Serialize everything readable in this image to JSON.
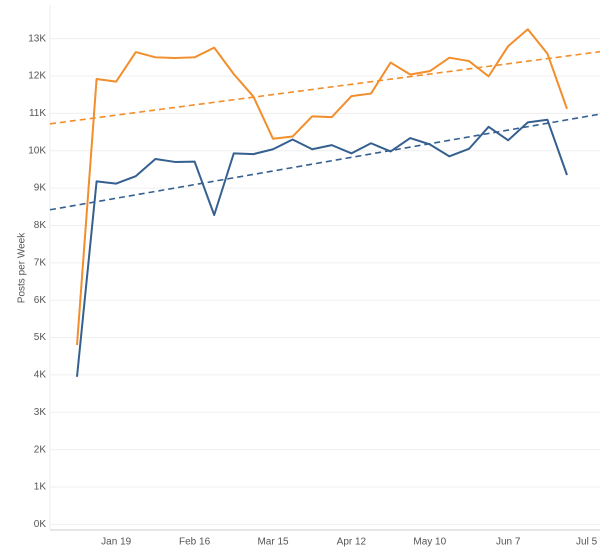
{
  "chart_data": {
    "type": "line",
    "y_label": "Posts per Week",
    "categories": [
      null,
      null,
      "Jan 19",
      null,
      null,
      null,
      "Feb 16",
      null,
      null,
      null,
      "Mar 15",
      null,
      null,
      null,
      "Apr 12",
      null,
      null,
      null,
      "May 10",
      null,
      null,
      null,
      "Jun 7",
      null,
      null,
      null,
      "Jul 5"
    ],
    "series": [
      {
        "color": "#f28e2b",
        "values": [
          4800,
          11920,
          11850,
          12640,
          12500,
          12480,
          12500,
          12760,
          12050,
          11450,
          10320,
          10380,
          10920,
          10900,
          11460,
          11530,
          12360,
          12040,
          12130,
          12490,
          12400,
          11990,
          12800,
          13250,
          12600,
          11120,
          null
        ]
      },
      {
        "color": "#35608f",
        "values": [
          3950,
          9180,
          9120,
          9320,
          9780,
          9700,
          9710,
          8280,
          9930,
          9910,
          10040,
          10300,
          10040,
          10150,
          9930,
          10200,
          9980,
          10340,
          10170,
          9850,
          10050,
          10640,
          10280,
          10760,
          10830,
          9350,
          null
        ]
      }
    ],
    "trendlines": [
      {
        "color": "#f28e2b",
        "values": [
          10720,
          12650
        ]
      },
      {
        "color": "#35608f",
        "values": [
          8420,
          10980
        ]
      }
    ],
    "ylim": [
      -150,
      13900
    ],
    "yticks": [
      {
        "value": 0,
        "label": "0K"
      },
      {
        "value": 1000,
        "label": "1K"
      },
      {
        "value": 2000,
        "label": "2K"
      },
      {
        "value": 3000,
        "label": "3K"
      },
      {
        "value": 4000,
        "label": "4K"
      },
      {
        "value": 5000,
        "label": "5K"
      },
      {
        "value": 6000,
        "label": "6K"
      },
      {
        "value": 7000,
        "label": "7K"
      },
      {
        "value": 8000,
        "label": "8K"
      },
      {
        "value": 9000,
        "label": "9K"
      },
      {
        "value": 10000,
        "label": "10K"
      },
      {
        "value": 11000,
        "label": "11K"
      },
      {
        "value": 12000,
        "label": "12K"
      },
      {
        "value": 13000,
        "label": "13K"
      }
    ],
    "grid": true
  }
}
